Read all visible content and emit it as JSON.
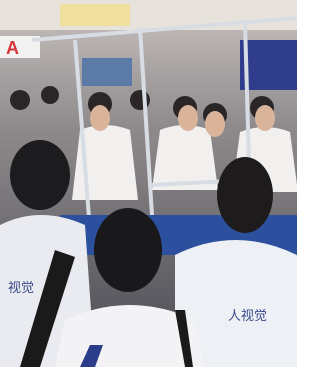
{
  "photo": {
    "sign_text": "A",
    "shirt_texts": [
      "视觉",
      "人视觉"
    ]
  }
}
